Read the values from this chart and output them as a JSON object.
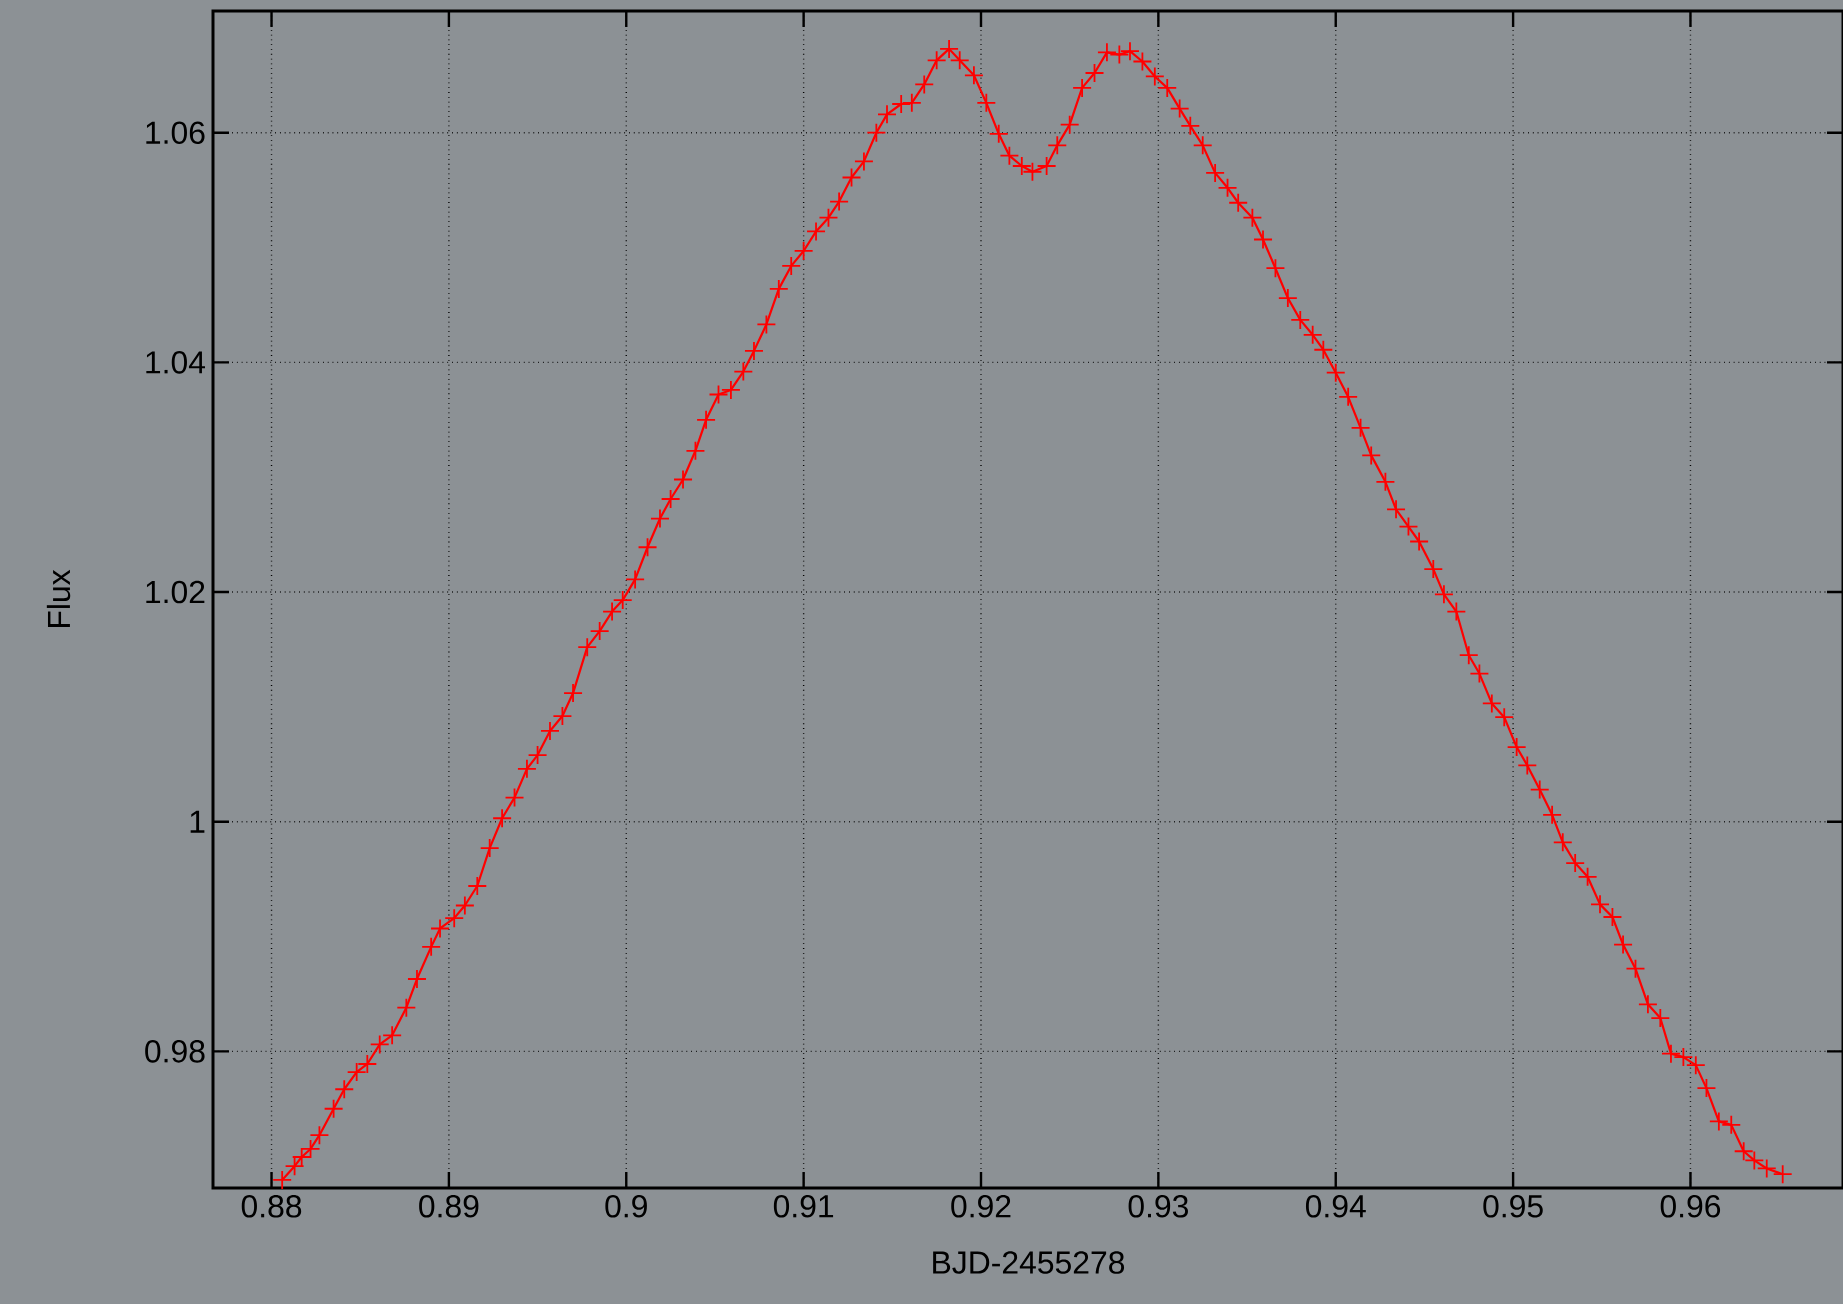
{
  "chart_data": {
    "type": "line",
    "xlabel": "BJD-2455278",
    "ylabel": "Flux",
    "xlim": [
      0.8767,
      0.9686
    ],
    "ylim": [
      0.9681,
      1.0706
    ],
    "xticks": [
      0.88,
      0.89,
      0.9,
      0.91,
      0.92,
      0.93,
      0.94,
      0.95,
      0.96
    ],
    "yticks": [
      0.98,
      1,
      1.02,
      1.04,
      1.06
    ],
    "grid": true,
    "marker": "cross",
    "line_style": "solid",
    "series": [
      {
        "color": "#ff0000",
        "x": [
          0.8806,
          0.8813,
          0.8817,
          0.8822,
          0.8827,
          0.8835,
          0.8841,
          0.8848,
          0.8854,
          0.8861,
          0.8868,
          0.8876,
          0.8882,
          0.889,
          0.8895,
          0.8903,
          0.8909,
          0.8916,
          0.8923,
          0.893,
          0.8937,
          0.8944,
          0.895,
          0.8957,
          0.8964,
          0.897,
          0.8978,
          0.8985,
          0.8992,
          0.8998,
          0.9005,
          0.9012,
          0.9019,
          0.9025,
          0.9032,
          0.9039,
          0.9045,
          0.9052,
          0.9059,
          0.9066,
          0.9072,
          0.9079,
          0.9086,
          0.9093,
          0.91,
          0.9107,
          0.9114,
          0.912,
          0.9127,
          0.9134,
          0.9141,
          0.9147,
          0.9155,
          0.9161,
          0.9168,
          0.9175,
          0.9182,
          0.9188,
          0.9196,
          0.9203,
          0.921,
          0.9216,
          0.9223,
          0.9229,
          0.9237,
          0.9243,
          0.925,
          0.9257,
          0.9264,
          0.9271,
          0.9278,
          0.9284,
          0.9291,
          0.9298,
          0.9305,
          0.9312,
          0.9318,
          0.9325,
          0.9332,
          0.9339,
          0.9345,
          0.9353,
          0.9359,
          0.9366,
          0.9373,
          0.938,
          0.9387,
          0.9393,
          0.94,
          0.9407,
          0.9414,
          0.942,
          0.9428,
          0.9434,
          0.9441,
          0.9447,
          0.9455,
          0.9461,
          0.9468,
          0.9475,
          0.9481,
          0.9488,
          0.9495,
          0.9502,
          0.9508,
          0.9515,
          0.9522,
          0.9528,
          0.9535,
          0.9542,
          0.9549,
          0.9556,
          0.9562,
          0.9569,
          0.9576,
          0.9583,
          0.9589,
          0.9596,
          0.9603,
          0.9609,
          0.9616,
          0.9623,
          0.963,
          0.9636,
          0.9643,
          0.9652
        ],
        "values": [
          0.9688,
          0.97,
          0.9708,
          0.9715,
          0.9727,
          0.975,
          0.9767,
          0.9782,
          0.9789,
          0.9806,
          0.9814,
          0.9838,
          0.9863,
          0.9891,
          0.9907,
          0.9916,
          0.9927,
          0.9944,
          0.9977,
          1.0003,
          1.0021,
          1.0046,
          1.0058,
          1.0079,
          1.0092,
          1.0112,
          1.0152,
          1.0166,
          1.0183,
          1.0193,
          1.0211,
          1.0239,
          1.0264,
          1.0281,
          1.0298,
          1.0323,
          1.035,
          1.0372,
          1.0376,
          1.0392,
          1.041,
          1.0433,
          1.0464,
          1.0484,
          1.0497,
          1.0514,
          1.0526,
          1.054,
          1.0561,
          1.0575,
          1.06,
          1.0616,
          1.0625,
          1.0626,
          1.0642,
          1.0663,
          1.0673,
          1.0663,
          1.065,
          1.0626,
          1.0599,
          1.058,
          1.0571,
          1.0566,
          1.0571,
          1.0589,
          1.0607,
          1.0639,
          1.0652,
          1.067,
          1.0668,
          1.0671,
          1.0662,
          1.0649,
          1.0639,
          1.0621,
          1.0606,
          1.0589,
          1.0565,
          1.0552,
          1.0539,
          1.0526,
          1.0507,
          1.0482,
          1.0456,
          1.0437,
          1.0424,
          1.0411,
          1.0391,
          1.037,
          1.0343,
          1.0319,
          1.0296,
          1.0272,
          1.0257,
          1.0244,
          1.022,
          1.0198,
          1.0183,
          1.0145,
          1.0129,
          1.0103,
          1.0091,
          1.0065,
          1.0049,
          1.0028,
          1.0006,
          0.9982,
          0.9964,
          0.9952,
          0.9928,
          0.9917,
          0.9893,
          0.9872,
          0.9841,
          0.9829,
          0.9798,
          0.9795,
          0.9788,
          0.9768,
          0.9739,
          0.9736,
          0.9713,
          0.9705,
          0.9698,
          0.9693
        ]
      }
    ]
  }
}
